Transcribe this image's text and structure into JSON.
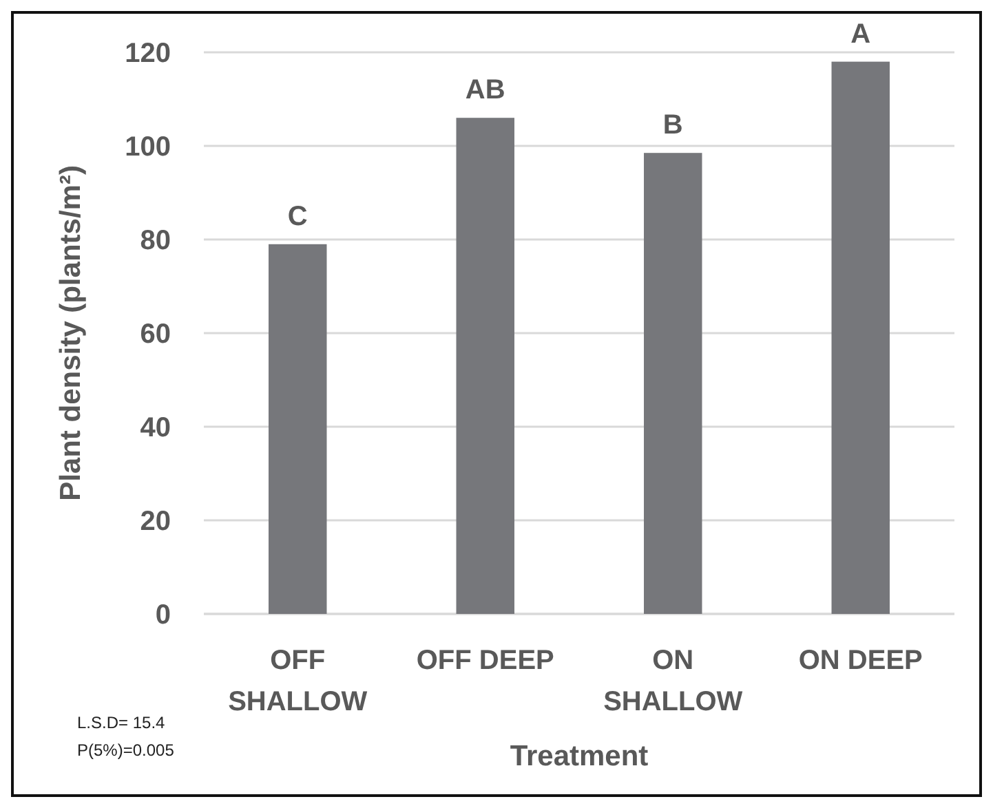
{
  "chart_data": {
    "type": "bar",
    "xlabel": "Treatment",
    "ylabel": "Plant density (plants/m²)",
    "categories": [
      "OFF SHALLOW",
      "OFF DEEP",
      "ON SHALLOW",
      "ON DEEP"
    ],
    "values": [
      79,
      106,
      98.5,
      118
    ],
    "color": "#76777b",
    "ylim": [
      0,
      120
    ],
    "yticks": [
      0,
      20,
      40,
      60,
      80,
      100,
      120
    ],
    "grid": "y",
    "annotations": [
      {
        "text": "C",
        "x": "OFF SHALLOW",
        "y": 79
      },
      {
        "text": "AB",
        "x": "OFF DEEP",
        "y": 106
      },
      {
        "text": "B",
        "x": "ON SHALLOW",
        "y": 98.5
      },
      {
        "text": "A",
        "x": "ON DEEP",
        "y": 118
      },
      "L.S.D= 15.4",
      "P(5%)=0.005"
    ]
  }
}
